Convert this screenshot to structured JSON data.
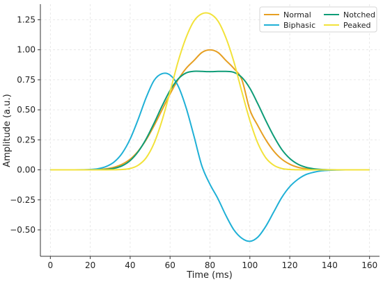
{
  "chart_data": {
    "type": "line",
    "xlabel": "Time (ms)",
    "ylabel": "Amplitude (a.u.)",
    "xlim": [
      -5,
      165
    ],
    "ylim": [
      -0.72,
      1.38
    ],
    "x_ticks": [
      0,
      20,
      40,
      60,
      80,
      100,
      120,
      140,
      160
    ],
    "x_tick_labels": [
      "0",
      "20",
      "40",
      "60",
      "80",
      "100",
      "120",
      "140",
      "160"
    ],
    "y_ticks": [
      -0.5,
      -0.25,
      0,
      0.25,
      0.5,
      0.75,
      1.0,
      1.25
    ],
    "y_tick_labels": [
      "−0.50",
      "−0.25",
      "0.00",
      "0.25",
      "0.50",
      "0.75",
      "1.00",
      "1.25"
    ],
    "grid": true,
    "legend_position": "top-right",
    "x": [
      0,
      4,
      8,
      12,
      16,
      20,
      24,
      28,
      32,
      36,
      40,
      44,
      48,
      52,
      56,
      60,
      64,
      68,
      72,
      76,
      80,
      84,
      88,
      92,
      96,
      100,
      104,
      108,
      112,
      116,
      120,
      124,
      128,
      132,
      136,
      140,
      144,
      148,
      152,
      156,
      160
    ],
    "series": [
      {
        "name": "Normal",
        "color": "#e69f22",
        "values": [
          0.0,
          0.0,
          0.0,
          0.0,
          0.0,
          0.001,
          0.003,
          0.009,
          0.022,
          0.047,
          0.089,
          0.156,
          0.25,
          0.368,
          0.5,
          0.632,
          0.75,
          0.844,
          0.911,
          0.978,
          1.0,
          0.978,
          0.911,
          0.844,
          0.75,
          0.5,
          0.368,
          0.25,
          0.156,
          0.089,
          0.047,
          0.022,
          0.009,
          0.003,
          0.001,
          0.0,
          0.0,
          0.0,
          0.0,
          0.0,
          0.0
        ]
      },
      {
        "name": "Biphasic",
        "color": "#1fb0d6",
        "values": [
          0.0,
          0.0,
          0.0,
          0.0,
          0.001,
          0.003,
          0.01,
          0.028,
          0.066,
          0.139,
          0.257,
          0.42,
          0.601,
          0.745,
          0.801,
          0.79,
          0.7,
          0.52,
          0.28,
          0.03,
          -0.12,
          -0.24,
          -0.38,
          -0.5,
          -0.57,
          -0.595,
          -0.56,
          -0.47,
          -0.35,
          -0.23,
          -0.14,
          -0.08,
          -0.04,
          -0.02,
          -0.008,
          -0.003,
          -0.001,
          0.0,
          0.0,
          0.0,
          0.0
        ]
      },
      {
        "name": "Notched",
        "color": "#0e9c77",
        "values": [
          0.0,
          0.0,
          0.0,
          0.0,
          0.0,
          0.0,
          0.001,
          0.004,
          0.013,
          0.034,
          0.077,
          0.151,
          0.257,
          0.389,
          0.532,
          0.661,
          0.756,
          0.807,
          0.821,
          0.82,
          0.818,
          0.82,
          0.82,
          0.812,
          0.77,
          0.68,
          0.55,
          0.41,
          0.28,
          0.17,
          0.095,
          0.048,
          0.022,
          0.009,
          0.003,
          0.001,
          0.0,
          0.0,
          0.0,
          0.0,
          0.0
        ]
      },
      {
        "name": "Peaked",
        "color": "#f2e23a",
        "values": [
          0.0,
          0.0,
          0.0,
          0.0,
          0.0,
          0.0,
          0.0,
          0.0,
          0.001,
          0.003,
          0.011,
          0.038,
          0.1,
          0.222,
          0.412,
          0.65,
          0.9,
          1.1,
          1.24,
          1.3,
          1.3,
          1.24,
          1.1,
          0.9,
          0.65,
          0.412,
          0.222,
          0.1,
          0.038,
          0.011,
          0.003,
          0.001,
          0.0,
          0.0,
          0.0,
          0.0,
          0.0,
          0.0,
          0.0,
          0.0,
          0.0
        ]
      }
    ]
  }
}
